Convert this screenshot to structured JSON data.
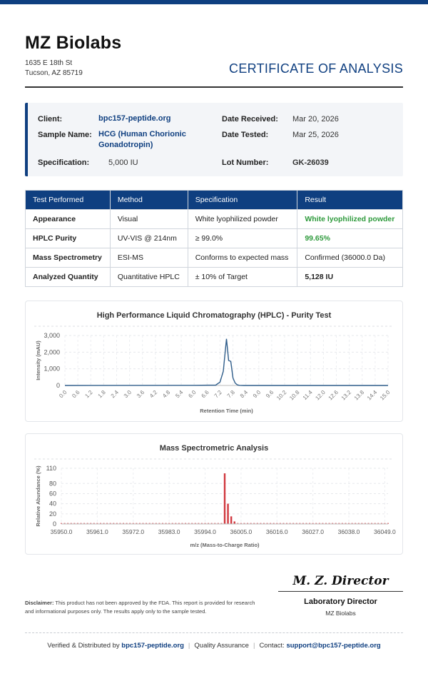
{
  "header": {
    "brand": "MZ Biolabs",
    "address_line1": "1635 E 18th St",
    "address_line2": "Tucson, AZ 85719",
    "doc_title": "CERTIFICATE OF ANALYSIS"
  },
  "info": {
    "client_label": "Client:",
    "client_value": "bpc157-peptide.org",
    "sample_label": "Sample Name:",
    "sample_value_line1": "HCG (Human Chorionic",
    "sample_value_line2": "Gonadotropin)",
    "spec_label": "Specification:",
    "spec_value": "5,000 IU",
    "received_label": "Date Received:",
    "received_value": "Mar 20, 2026",
    "tested_label": "Date Tested:",
    "tested_value": "Mar 25, 2026",
    "lot_label": "Lot Number:",
    "lot_value": "GK-26039"
  },
  "table": {
    "headers": [
      "Test Performed",
      "Method",
      "Specification",
      "Result"
    ],
    "rows": [
      [
        "Appearance",
        "Visual",
        "White lyophilized powder",
        "White lyophilized powder"
      ],
      [
        "HPLC Purity",
        "UV-VIS @ 214nm",
        "≥ 99.0%",
        "99.65%"
      ],
      [
        "Mass Spectrometry",
        "ESI-MS",
        "Conforms to expected mass",
        "Confirmed (36000.0 Da)"
      ],
      [
        "Analyzed Quantity",
        "Quantitative HPLC",
        "± 10% of Target",
        "5,128 IU"
      ]
    ]
  },
  "chart_data": [
    {
      "type": "line",
      "title": "High Performance Liquid Chromatography (HPLC) - Purity Test",
      "xlabel": "Retention Time (min)",
      "ylabel": "Intensity (mAU)",
      "xlim": [
        0,
        15
      ],
      "ylim": [
        0,
        3000
      ],
      "x_ticks": [
        "0.0",
        "0.6",
        "1.2",
        "1.8",
        "2.4",
        "3.0",
        "3.6",
        "4.2",
        "4.8",
        "5.4",
        "6.0",
        "6.6",
        "7.2",
        "7.8",
        "8.4",
        "9.0",
        "9.6",
        "10.2",
        "10.8",
        "11.4",
        "12.0",
        "12.6",
        "13.2",
        "13.8",
        "14.4",
        "15.0"
      ],
      "y_ticks": [
        "0",
        "1,000",
        "2,000",
        "3,000"
      ],
      "color": "#2f5d8a",
      "series": [
        {
          "x": [
            0,
            6.0,
            7.0,
            7.2,
            7.35,
            7.5,
            7.6,
            7.7,
            7.8,
            7.9,
            8.0,
            8.1,
            8.3,
            9.0,
            15.0
          ],
          "values": [
            0,
            10,
            20,
            200,
            850,
            2800,
            1500,
            1450,
            450,
            150,
            40,
            10,
            0,
            0,
            0
          ]
        }
      ]
    },
    {
      "type": "bar",
      "title": "Mass Spectrometric Analysis",
      "xlabel": "m/z (Mass-to-Charge Ratio)",
      "ylabel": "Relative Abundance (%)",
      "xlim": [
        35950,
        36050
      ],
      "ylim": [
        0,
        110
      ],
      "x_ticks": [
        "35950.0",
        "35961.0",
        "35972.0",
        "35983.0",
        "35994.0",
        "36005.0",
        "36016.0",
        "36027.0",
        "36038.0",
        "36049.0"
      ],
      "y_ticks": [
        "0",
        "20",
        "40",
        "60",
        "80",
        "110"
      ],
      "color": "#d1383f",
      "peaks": [
        {
          "x": 36000.0,
          "value": 100
        },
        {
          "x": 36001.0,
          "value": 40
        },
        {
          "x": 36002.0,
          "value": 15
        },
        {
          "x": 36003.0,
          "value": 5
        }
      ],
      "noise_level": 2
    }
  ],
  "signature": {
    "script": "M. Z. Director",
    "title": "Laboratory Director",
    "org": "MZ Biolabs"
  },
  "disclaimer": {
    "label": "Disclaimer:",
    "text": " This product has not been approved by the FDA. This report is provided for research and informational purposes only. The results apply only to the sample tested."
  },
  "footer": {
    "verified_prefix": "Verified & Distributed by ",
    "verified_link": "bpc157-peptide.org",
    "qa": "Quality Assurance",
    "contact_prefix": "Contact: ",
    "contact_link": "support@bpc157-peptide.org"
  }
}
